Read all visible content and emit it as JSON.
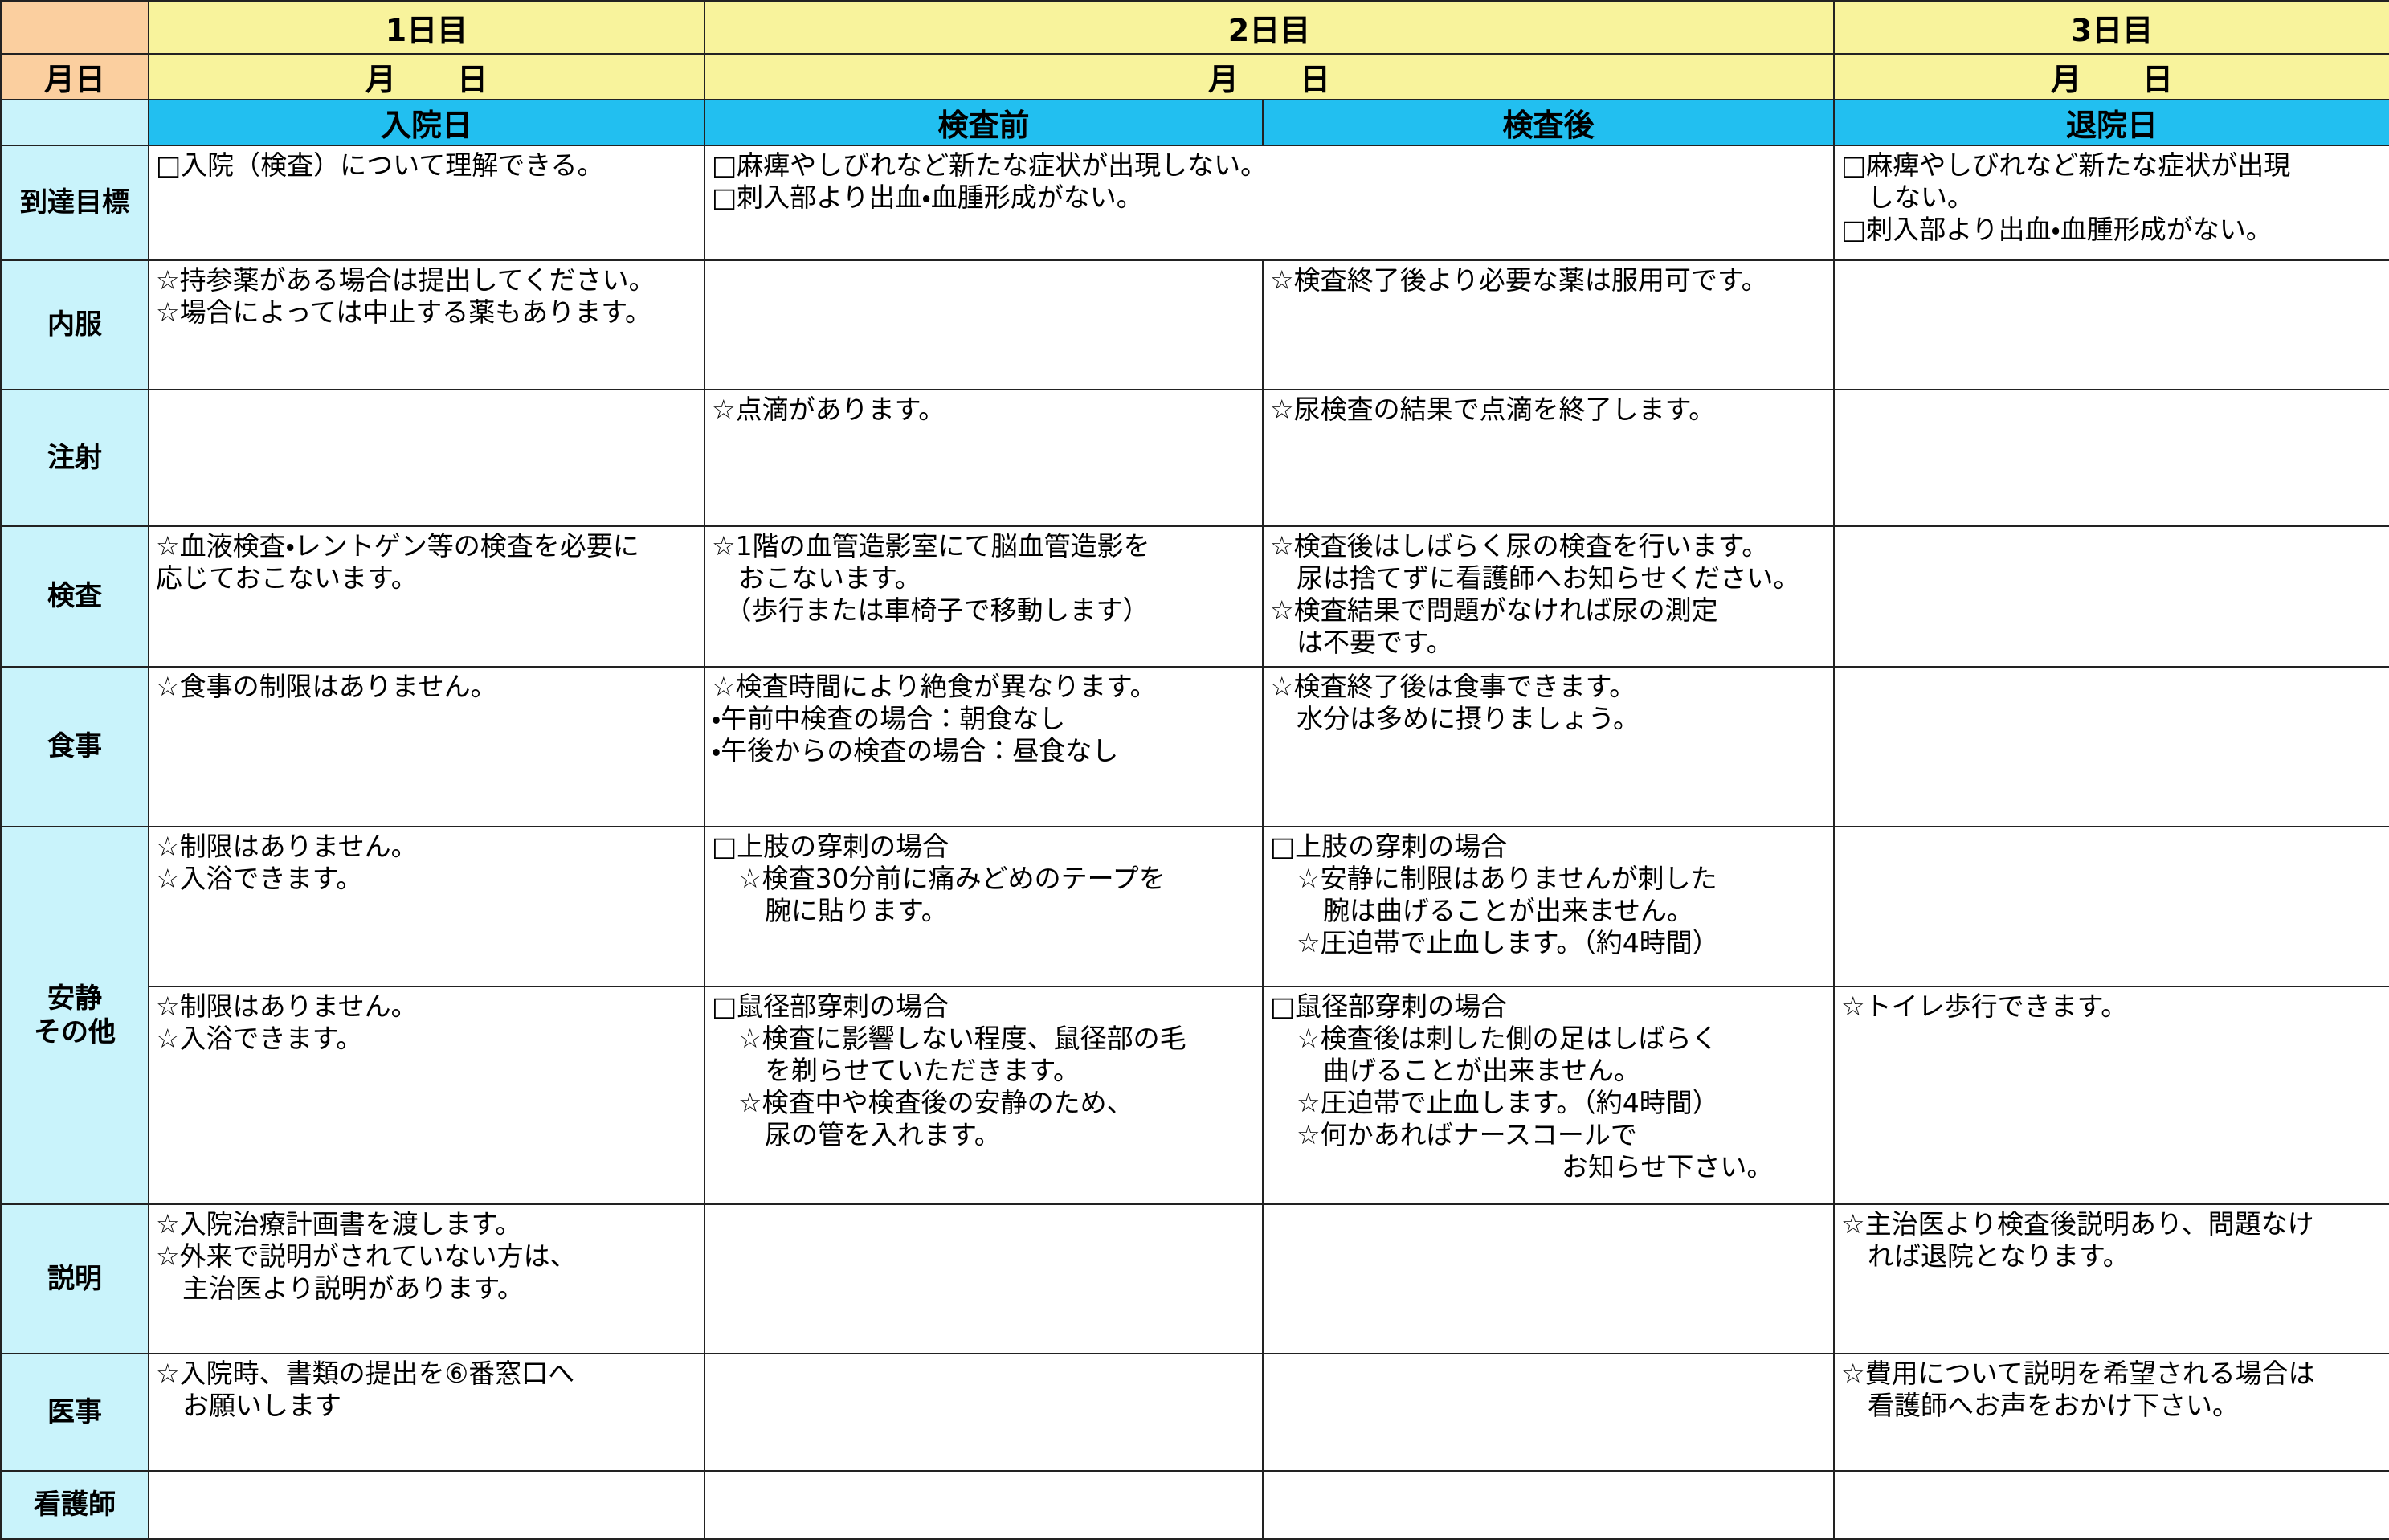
{
  "header": {
    "days": [
      "1日目",
      "2日目",
      "3日目"
    ],
    "date_label": "月日",
    "dates": [
      "月　　日",
      "月　　日",
      "月　　日"
    ],
    "phases": [
      "入院日",
      "検査前",
      "検査後",
      "退院日"
    ]
  },
  "rows": [
    {
      "label": "到達目標",
      "cells": [
        {
          "lines": [
            "□入院（検査）について理解できる。"
          ]
        },
        {
          "colspan": 2,
          "lines": [
            "□麻痺やしびれなど新たな症状が出現しない。",
            "□刺入部より出血・血腫形成がない。"
          ]
        },
        {
          "lines": [
            "□麻痺やしびれなど新たな症状が出現",
            "　しない。",
            "□刺入部より出血・血腫形成がない。"
          ]
        }
      ]
    },
    {
      "label": "内服",
      "cells": [
        {
          "lines": [
            "☆持参薬がある場合は提出してください。",
            "☆場合によっては中止する薬もあります。"
          ]
        },
        {
          "lines": []
        },
        {
          "lines": [
            "☆検査終了後より必要な薬は服用可です。"
          ]
        },
        {
          "lines": []
        }
      ]
    },
    {
      "label": "注射",
      "cells": [
        {
          "lines": []
        },
        {
          "lines": [
            "☆点滴があります。"
          ]
        },
        {
          "lines": [
            "☆尿検査の結果で点滴を終了します。"
          ]
        },
        {
          "lines": []
        }
      ]
    },
    {
      "label": "検査",
      "cells": [
        {
          "lines": [
            "☆血液検査・レントゲン等の検査を必要に",
            "応じておこないます。"
          ]
        },
        {
          "lines": [
            "☆1階の血管造影室にて脳血管造影を",
            "　おこないます。",
            "　（歩行または車椅子で移動します）"
          ]
        },
        {
          "lines": [
            "☆検査後はしばらく尿の検査を行います。",
            "　尿は捨てずに看護師へお知らせください。",
            "☆検査結果で問題がなければ尿の測定",
            "　は不要です。"
          ]
        },
        {
          "lines": []
        }
      ]
    },
    {
      "label": "食事",
      "cells": [
        {
          "lines": [
            "☆食事の制限はありません。"
          ]
        },
        {
          "lines": [
            "☆検査時間により絶食が異なります。",
            "・午前中検査の場合：朝食なし",
            "・午後からの検査の場合：昼食なし"
          ]
        },
        {
          "lines": [
            "☆検査終了後は食事できます。",
            "　水分は多めに摂りましょう。"
          ]
        },
        {
          "lines": []
        }
      ]
    },
    {
      "label": "安静\nその他",
      "cells": [
        {
          "lines": [
            "☆制限はありません。",
            "☆入浴できます。"
          ]
        },
        {
          "lines": [
            "□上肢の穿刺の場合",
            "　☆検査30分前に痛みどめのテープを",
            "　　腕に貼ります。"
          ]
        },
        {
          "lines": [
            "□上肢の穿刺の場合",
            "　☆安静に制限はありませんが刺した",
            "　　腕は曲げることが出来ません。",
            "　☆圧迫帯で止血します。（約4時間）"
          ]
        },
        {
          "lines": []
        }
      ]
    },
    {
      "cells": [
        {
          "lines": [
            "☆制限はありません。",
            "☆入浴できます。"
          ]
        },
        {
          "lines": [
            "□鼠径部穿刺の場合",
            "　☆検査に影響しない程度、鼠径部の毛",
            "　　を剃らせていただきます。",
            "　☆検査中や検査後の安静のため、",
            "　　尿の管を入れます。"
          ]
        },
        {
          "lines": [
            "□鼠径部穿刺の場合",
            "　☆検査後は刺した側の足はしばらく",
            "　　曲げることが出来ません。",
            "　☆圧迫帯で止血します。（約4時間）",
            "　☆何かあればナースコールで",
            "　　　　　　　　　　　お知らせ下さい。"
          ]
        },
        {
          "lines": [
            "☆トイレ歩行できます。"
          ]
        }
      ]
    },
    {
      "label": "説明",
      "cells": [
        {
          "lines": [
            "☆入院治療計画書を渡します。",
            "☆外来で説明がされていない方は、",
            "　主治医より説明があります。"
          ]
        },
        {
          "lines": []
        },
        {
          "lines": []
        },
        {
          "lines": [
            "☆主治医より検査後説明あり、問題なけ",
            "　れば退院となります。"
          ]
        }
      ]
    },
    {
      "label": "医事",
      "cells": [
        {
          "lines": [
            "☆入院時、書類の提出を⑥番窓口へ",
            "　お願いします"
          ]
        },
        {
          "lines": []
        },
        {
          "lines": []
        },
        {
          "lines": [
            "☆費用について説明を希望される場合は",
            "　看護師へお声をおかけ下さい。"
          ]
        }
      ]
    },
    {
      "label": "看護師",
      "cells": [
        {
          "lines": []
        },
        {
          "lines": []
        },
        {
          "lines": []
        },
        {
          "lines": []
        }
      ]
    }
  ]
}
